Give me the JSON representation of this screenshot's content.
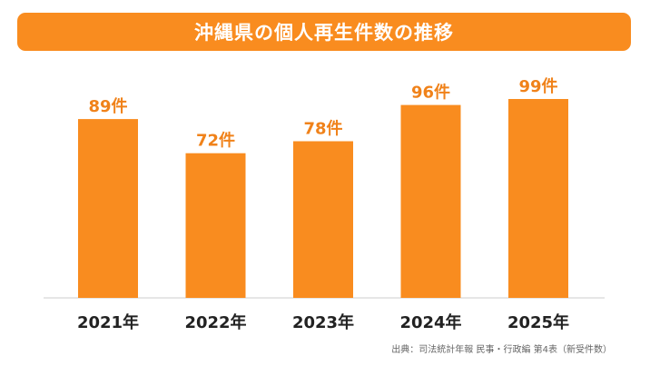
{
  "title": "沖縄県の個人再生件数の推移",
  "source": "出典：司法統計年報 民事・行政編 第4表（新受件数）",
  "colors": {
    "bar": "#f98c1f",
    "label": "#f0821a",
    "axis": "#cccccc",
    "text": "#222222"
  },
  "chart_data": {
    "type": "bar",
    "title": "沖縄県の個人再生件数の推移",
    "categories": [
      "2021年",
      "2022年",
      "2023年",
      "2024年",
      "2025年"
    ],
    "values": [
      89,
      72,
      78,
      96,
      99
    ],
    "data_labels": [
      "89件",
      "72件",
      "78件",
      "96件",
      "99件"
    ],
    "ylim": [
      0,
      100
    ],
    "grid": false,
    "legend": "none"
  }
}
